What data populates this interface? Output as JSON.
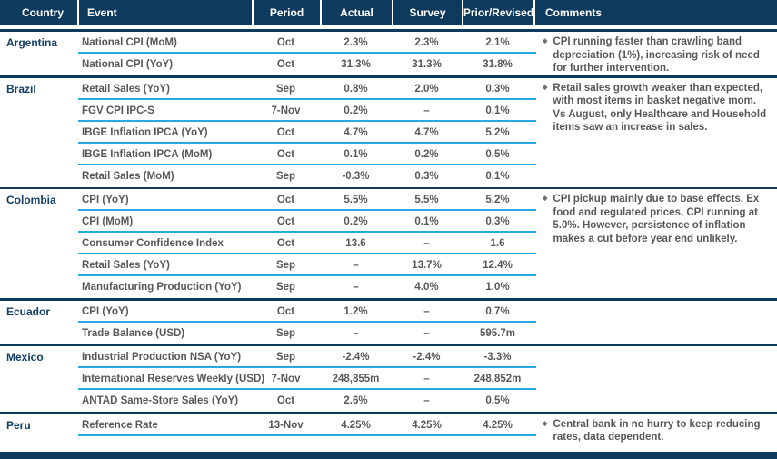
{
  "colors": {
    "navy": "#0e3a5e",
    "light_blue_divider": "#29a9e1",
    "body_text": "#57585a",
    "country_text": "#123e68",
    "header_text": "#ffffff"
  },
  "icons": {
    "comment_bullet": "◆"
  },
  "table": {
    "columns": [
      "Country",
      "Event",
      "Period",
      "Actual",
      "Survey",
      "Prior/Revised",
      "Comments"
    ],
    "groups": [
      {
        "country": "Argentina",
        "comment": "CPI running faster than crawling band depreciation (1%), increasing risk of need for further intervention.",
        "rows": [
          {
            "event": "National CPI (MoM)",
            "period": "Oct",
            "actual": "2.3%",
            "survey": "2.3%",
            "prior": "2.1%"
          },
          {
            "event": "National CPI (YoY)",
            "period": "Oct",
            "actual": "31.3%",
            "survey": "31.3%",
            "prior": "31.8%"
          }
        ]
      },
      {
        "country": "Brazil",
        "comment": "Retail sales growth weaker than expected, with most items in basket negative mom. Vs August, only Healthcare and Household items saw an increase in sales.",
        "rows": [
          {
            "event": "Retail Sales (YoY)",
            "period": "Sep",
            "actual": "0.8%",
            "survey": "2.0%",
            "prior": "0.3%"
          },
          {
            "event": "FGV CPI IPC-S",
            "period": "7-Nov",
            "actual": "0.2%",
            "survey": "–",
            "prior": "0.1%"
          },
          {
            "event": "IBGE Inflation IPCA (YoY)",
            "period": "Oct",
            "actual": "4.7%",
            "survey": "4.7%",
            "prior": "5.2%"
          },
          {
            "event": "IBGE Inflation IPCA (MoM)",
            "period": "Oct",
            "actual": "0.1%",
            "survey": "0.2%",
            "prior": "0.5%"
          },
          {
            "event": "Retail Sales (MoM)",
            "period": "Sep",
            "actual": "-0.3%",
            "survey": "0.3%",
            "prior": "0.1%"
          }
        ]
      },
      {
        "country": "Colombia",
        "comment": "CPI pickup mainly due to base effects. Ex food and regulated prices, CPI running at 5.0%. However, persistence of inflation makes a cut before year end unlikely.",
        "rows": [
          {
            "event": "CPI (YoY)",
            "period": "Oct",
            "actual": "5.5%",
            "survey": "5.5%",
            "prior": "5.2%"
          },
          {
            "event": "CPI (MoM)",
            "period": "Oct",
            "actual": "0.2%",
            "survey": "0.1%",
            "prior": "0.3%"
          },
          {
            "event": "Consumer Confidence Index",
            "period": "Oct",
            "actual": "13.6",
            "survey": "–",
            "prior": "1.6"
          },
          {
            "event": "Retail Sales (YoY)",
            "period": "Sep",
            "actual": "–",
            "survey": "13.7%",
            "prior": "12.4%"
          },
          {
            "event": "Manufacturing Production (YoY)",
            "period": "Sep",
            "actual": "–",
            "survey": "4.0%",
            "prior": "1.0%"
          }
        ]
      },
      {
        "country": "Ecuador",
        "comment": "",
        "rows": [
          {
            "event": "CPI (YoY)",
            "period": "Oct",
            "actual": "1.2%",
            "survey": "–",
            "prior": "0.7%"
          },
          {
            "event": "Trade Balance (USD)",
            "period": "Sep",
            "actual": "–",
            "survey": "–",
            "prior": "595.7m"
          }
        ]
      },
      {
        "country": "Mexico",
        "comment": "",
        "rows": [
          {
            "event": "Industrial Production NSA (YoY)",
            "period": "Sep",
            "actual": "-2.4%",
            "survey": "-2.4%",
            "prior": "-3.3%"
          },
          {
            "event": "International Reserves Weekly (USD)",
            "period": "7-Nov",
            "actual": "248,855m",
            "survey": "–",
            "prior": "248,852m"
          },
          {
            "event": "ANTAD Same-Store Sales (YoY)",
            "period": "Oct",
            "actual": "2.6%",
            "survey": "–",
            "prior": "0.5%"
          }
        ]
      },
      {
        "country": "Peru",
        "comment": "Central bank in no hurry to keep reducing rates, data dependent.",
        "rows": [
          {
            "event": "Reference Rate",
            "period": "13-Nov",
            "actual": "4.25%",
            "survey": "4.25%",
            "prior": "4.25%"
          }
        ]
      }
    ]
  }
}
